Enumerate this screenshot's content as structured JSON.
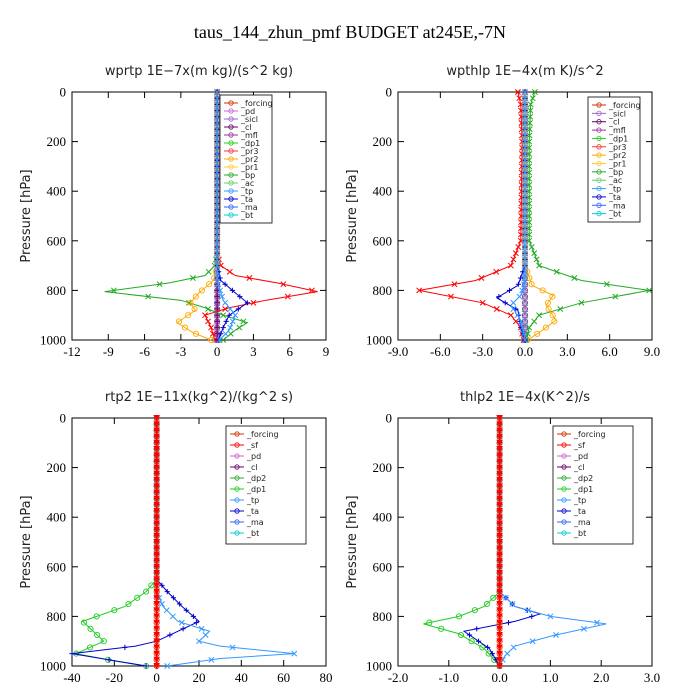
{
  "page_title": "taus_144_zhun_pmf  BUDGET at245E,-7N",
  "chart_data": [
    {
      "type": "line",
      "title": "wprtp  1E−7x(m kg)/(s^2 kg)",
      "ylabel": "Pressure [hPa]",
      "xlim": [
        -12,
        9
      ],
      "ylim": [
        1000,
        0
      ],
      "xticks": [
        -12,
        -9,
        -6,
        -3,
        0,
        3,
        6,
        9
      ],
      "xtick_labels": [
        "-12",
        "-9",
        "-6",
        "-3",
        "0",
        "3",
        "6",
        "9"
      ],
      "yticks": [
        0,
        200,
        400,
        600,
        800,
        1000
      ],
      "legend": [
        "_forcing",
        "_pd",
        "_sicl",
        "_cl",
        "_mfl",
        "_dp1",
        "_pr3",
        "_pr2",
        "_pr1",
        "_bp",
        "_ac",
        "_tp",
        "_ta",
        "_ma",
        "_bt"
      ],
      "series": [
        {
          "name": "_forcing",
          "color": "#555555",
          "marker": "circle",
          "x": [
            0,
            0
          ],
          "y": [
            0,
            1000
          ]
        },
        {
          "name": "_pd",
          "color": "#cc66cc",
          "marker": "diamond",
          "x": [
            0,
            0
          ],
          "y": [
            0,
            1000
          ]
        },
        {
          "name": "_sicl",
          "color": "#9966cc",
          "marker": "triangle",
          "x": [
            0,
            0
          ],
          "y": [
            0,
            1000
          ]
        },
        {
          "name": "_cl",
          "color": "#660066",
          "marker": "plus",
          "x": [
            0,
            0
          ],
          "y": [
            0,
            1000
          ]
        },
        {
          "name": "_bp",
          "color": "#22aa22",
          "marker": "cross",
          "x": [
            0,
            0,
            -0.2,
            -1,
            -4,
            -9.3,
            -3,
            -1,
            0.5,
            2.5,
            1.5,
            0.5
          ],
          "y": [
            0,
            650,
            700,
            740,
            770,
            805,
            840,
            870,
            900,
            930,
            960,
            1000
          ]
        },
        {
          "name": "_pr1",
          "color": "#ff0000",
          "marker": "cross",
          "x": [
            0,
            0,
            0.3,
            1.5,
            5,
            8.3,
            4,
            1,
            -1,
            -0.5,
            -0.2
          ],
          "y": [
            0,
            650,
            700,
            740,
            770,
            805,
            840,
            870,
            900,
            950,
            1000
          ]
        },
        {
          "name": "_pr2",
          "color": "#ffaa00",
          "marker": "circle",
          "x": [
            0,
            0,
            -0.3,
            -1.5,
            -2.2,
            -1.8,
            -3.3,
            -2,
            -0.5
          ],
          "y": [
            0,
            700,
            760,
            810,
            850,
            880,
            930,
            970,
            1000
          ]
        },
        {
          "name": "_ta",
          "color": "#0000cc",
          "marker": "plus",
          "x": [
            0,
            0,
            0.3,
            1.5,
            2.5,
            1,
            0.5,
            0.1
          ],
          "y": [
            0,
            700,
            760,
            810,
            850,
            900,
            950,
            1000
          ]
        },
        {
          "name": "_tp",
          "color": "#3399ff",
          "marker": "cross",
          "x": [
            0,
            0,
            0.5,
            1.5,
            1,
            0.2
          ],
          "y": [
            0,
            760,
            840,
            900,
            960,
            1000
          ]
        }
      ]
    },
    {
      "type": "line",
      "title": "wpthlp  1E−4x(m K)/s^2",
      "ylabel": "Pressure [hPa]",
      "xlim": [
        -9,
        9
      ],
      "ylim": [
        1000,
        0
      ],
      "xticks": [
        -9,
        -6,
        -3,
        0,
        3,
        6,
        9
      ],
      "xtick_labels": [
        "-9.0",
        "-6.0",
        "-3.0",
        "0.0",
        "3.0",
        "6.0",
        "9.0"
      ],
      "yticks": [
        0,
        200,
        400,
        600,
        800,
        1000
      ],
      "legend": [
        "_forcing",
        "_sicl",
        "_cl",
        "_mfl",
        "_dp1",
        "_pr3",
        "_pr2",
        "_pr1",
        "_bp",
        "_ac",
        "_tp",
        "_ta",
        "_ma",
        "_bt"
      ],
      "series": [
        {
          "name": "_forcing",
          "color": "#555555",
          "marker": "circle",
          "x": [
            0,
            0
          ],
          "y": [
            0,
            1000
          ]
        },
        {
          "name": "_sicl",
          "color": "#9966cc",
          "marker": "triangle",
          "x": [
            0,
            0
          ],
          "y": [
            0,
            1000
          ]
        },
        {
          "name": "_pr1",
          "color": "#ff0000",
          "marker": "cross",
          "x": [
            -0.5,
            -0.3,
            -0.2,
            -0.3,
            -1,
            -3.5,
            -7.5,
            -3,
            -1,
            -0.3,
            -0.1
          ],
          "y": [
            0,
            50,
            200,
            600,
            700,
            760,
            800,
            850,
            900,
            950,
            1000
          ]
        },
        {
          "name": "_bp",
          "color": "#22aa22",
          "marker": "cross",
          "x": [
            0.7,
            0.4,
            0.3,
            0.3,
            1,
            4,
            8.8,
            4,
            1,
            0.3,
            0.1
          ],
          "y": [
            0,
            50,
            200,
            600,
            700,
            760,
            800,
            850,
            900,
            950,
            1000
          ]
        },
        {
          "name": "_pr2",
          "color": "#ffaa00",
          "marker": "circle",
          "x": [
            0,
            0,
            0.5,
            2,
            1.5,
            2.2,
            1,
            0.2
          ],
          "y": [
            0,
            700,
            780,
            820,
            860,
            920,
            970,
            1000
          ]
        },
        {
          "name": "_ta",
          "color": "#0000cc",
          "marker": "plus",
          "x": [
            0,
            0,
            -0.5,
            -2,
            -0.5,
            -0.3,
            0
          ],
          "y": [
            0,
            700,
            780,
            830,
            880,
            950,
            1000
          ]
        },
        {
          "name": "_tp",
          "color": "#3399ff",
          "marker": "cross",
          "x": [
            0,
            0,
            -0.3,
            -1,
            -0.3,
            0
          ],
          "y": [
            0,
            760,
            820,
            860,
            920,
            1000
          ]
        }
      ]
    },
    {
      "type": "line",
      "title": "rtp2  1E−11x(kg^2)/(kg^2 s)",
      "ylabel": "Pressure [hPa]",
      "xlim": [
        -40,
        80
      ],
      "ylim": [
        1000,
        0
      ],
      "xticks": [
        -40,
        -20,
        0,
        20,
        40,
        60,
        80
      ],
      "xtick_labels": [
        "-40",
        "-20",
        "0",
        "20",
        "40",
        "60",
        "80"
      ],
      "yticks": [
        0,
        200,
        400,
        600,
        800,
        1000
      ],
      "legend": [
        "_forcing",
        "_sf",
        "_pd",
        "_cl",
        "_dp2",
        "_dp1",
        "_tp",
        "_ta",
        "_ma",
        "_bt"
      ],
      "series": [
        {
          "name": "_dp1",
          "color": "#22cc22",
          "marker": "circle",
          "x": [
            0,
            0,
            -5,
            -15,
            -35,
            -30,
            -25,
            -38,
            -20,
            -5
          ],
          "y": [
            0,
            650,
            700,
            760,
            820,
            860,
            900,
            950,
            980,
            1000
          ]
        },
        {
          "name": "_ta",
          "color": "#0000cc",
          "marker": "plus",
          "x": [
            0,
            0,
            5,
            12,
            20,
            10,
            0,
            -10,
            -40,
            -5
          ],
          "y": [
            0,
            650,
            700,
            760,
            820,
            860,
            900,
            920,
            950,
            1000
          ]
        },
        {
          "name": "_tp",
          "color": "#3399ff",
          "marker": "cross",
          "x": [
            0,
            0,
            3,
            10,
            25,
            20,
            30,
            65,
            30,
            5
          ],
          "y": [
            0,
            700,
            760,
            820,
            860,
            900,
            920,
            950,
            970,
            1000
          ]
        },
        {
          "name": "_forcing",
          "color": "#dd3300",
          "marker": "circle",
          "x": [
            0,
            0
          ],
          "y": [
            0,
            1000
          ]
        },
        {
          "name": "_sf",
          "color": "#ff0000",
          "marker": "triangle-down",
          "x": [
            0,
            0
          ],
          "y": [
            0,
            1000
          ]
        }
      ]
    },
    {
      "type": "line",
      "title": "thlp2  1E−4x(K^2)/s",
      "ylabel": "Pressure [hPa]",
      "xlim": [
        -2,
        3
      ],
      "ylim": [
        1000,
        0
      ],
      "xticks": [
        -2,
        -1,
        0,
        1,
        2,
        3
      ],
      "xtick_labels": [
        "-2.0",
        "-1.0",
        "0.0",
        "1.0",
        "2.0",
        "3.0"
      ],
      "yticks": [
        0,
        200,
        400,
        600,
        800,
        1000
      ],
      "legend": [
        "_forcing",
        "_sf",
        "_pd",
        "_cl",
        "_dp2",
        "_dp1",
        "_tp",
        "_ta",
        "_ma",
        "_bt"
      ],
      "series": [
        {
          "name": "_dp1",
          "color": "#22cc22",
          "marker": "circle",
          "x": [
            0,
            0,
            -0.3,
            -0.8,
            -1.5,
            -0.8,
            -0.3,
            0
          ],
          "y": [
            0,
            700,
            760,
            800,
            830,
            870,
            930,
            1000
          ]
        },
        {
          "name": "_ta",
          "color": "#0000cc",
          "marker": "plus",
          "x": [
            0,
            0,
            0.3,
            0.8,
            0.3,
            -0.7,
            -0.2,
            0
          ],
          "y": [
            0,
            700,
            760,
            790,
            820,
            860,
            930,
            1000
          ]
        },
        {
          "name": "_tp",
          "color": "#3399ff",
          "marker": "cross",
          "x": [
            0,
            0,
            0.3,
            1,
            2.1,
            1,
            0.3,
            0.1,
            0
          ],
          "y": [
            0,
            700,
            760,
            800,
            830,
            880,
            920,
            960,
            1000
          ]
        },
        {
          "name": "_forcing",
          "color": "#dd3300",
          "marker": "circle",
          "x": [
            0,
            0
          ],
          "y": [
            0,
            1000
          ]
        },
        {
          "name": "_sf",
          "color": "#ff0000",
          "marker": "triangle-down",
          "x": [
            0,
            0
          ],
          "y": [
            0,
            1000
          ]
        }
      ]
    }
  ]
}
